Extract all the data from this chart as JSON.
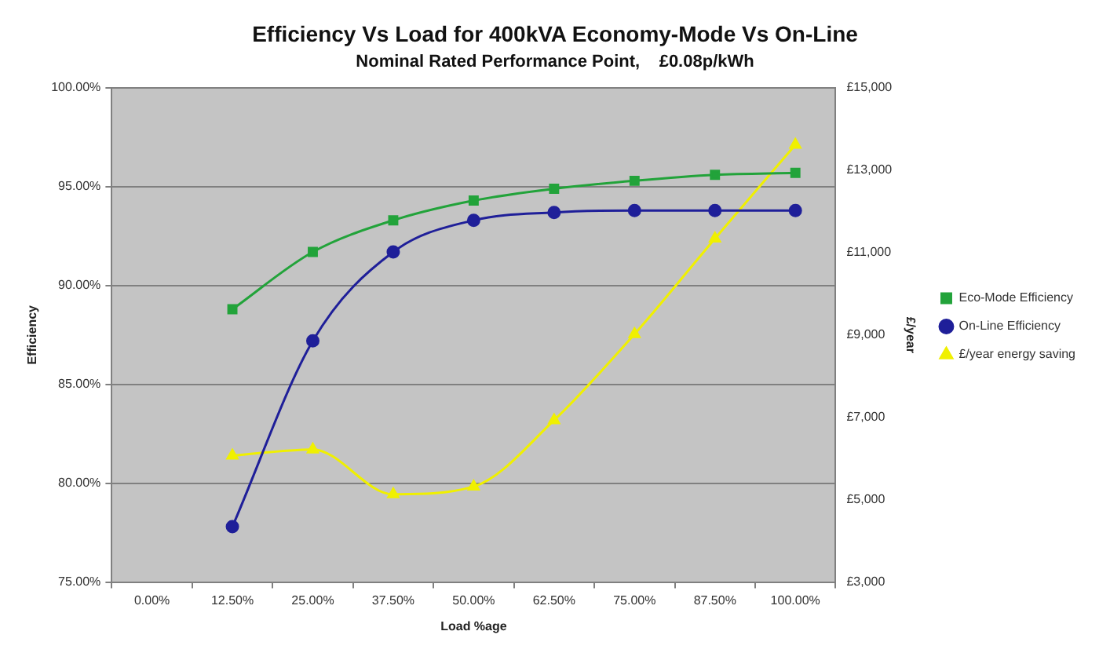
{
  "chart_data": {
    "type": "line",
    "title": "Efficiency Vs Load for 400kVA Economy-Mode Vs On-Line",
    "subtitle": "Nominal Rated Performance Point,    £0.08p/kWh",
    "xlabel": "Load %age",
    "ylabel": "Efficiency",
    "y2label": "£/year",
    "categories": [
      "0.00%",
      "12.50%",
      "25.00%",
      "37.50%",
      "50.00%",
      "62.50%",
      "75.00%",
      "87.50%",
      "100.00%"
    ],
    "series": [
      {
        "name": "Eco-Mode Efficiency",
        "color": "#22a33a",
        "marker": "square",
        "values": [
          null,
          88.8,
          91.7,
          93.3,
          94.3,
          94.9,
          95.3,
          95.6,
          95.7
        ]
      },
      {
        "name": "On-Line Efficiency",
        "color": "#1f1f99",
        "marker": "circle",
        "values": [
          null,
          77.8,
          87.2,
          91.7,
          93.3,
          93.7,
          93.8,
          93.8,
          93.8
        ]
      },
      {
        "name": "£/year energy saving",
        "color": "#f0f000",
        "marker": "triangle",
        "axis": "y2",
        "values": [
          null,
          6070,
          6220,
          5130,
          5320,
          6930,
          9020,
          11340,
          13620
        ]
      }
    ],
    "ylim": [
      75,
      100
    ],
    "yticks": [
      {
        "value": 75,
        "label": "75.00%"
      },
      {
        "value": 80,
        "label": "80.00%"
      },
      {
        "value": 85,
        "label": "85.00%"
      },
      {
        "value": 90,
        "label": "90.00%"
      },
      {
        "value": 95,
        "label": "95.00%"
      },
      {
        "value": 100,
        "label": "100.00%"
      }
    ],
    "y2lim": [
      3000,
      15000
    ],
    "y2ticks": [
      {
        "value": 3000,
        "label": "£3,000"
      },
      {
        "value": 5000,
        "label": "£5,000"
      },
      {
        "value": 7000,
        "label": "£7,000"
      },
      {
        "value": 9000,
        "label": "£9,000"
      },
      {
        "value": 11000,
        "label": "£11,000"
      },
      {
        "value": 13000,
        "label": "£13,000"
      },
      {
        "value": 15000,
        "label": "£15,000"
      }
    ],
    "grid": "y",
    "legend": "right"
  }
}
